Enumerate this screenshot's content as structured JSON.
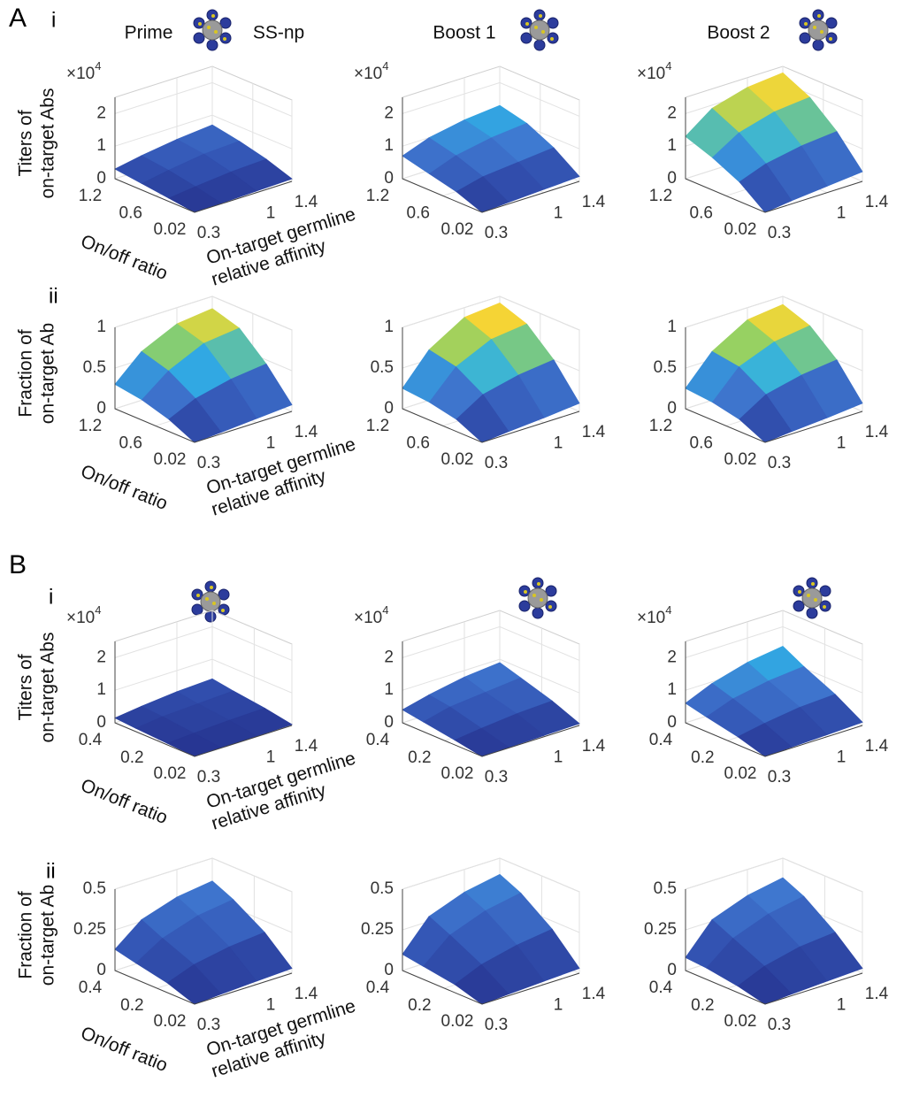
{
  "panel_labels": [
    "A",
    "B"
  ],
  "row_labels": [
    "i",
    "ii",
    "i",
    "ii"
  ],
  "icon_label": "SS-np",
  "colormap": [
    "#26338f",
    "#3456b5",
    "#3f78d0",
    "#2fb0e6",
    "#8fd066",
    "#f5d736",
    "#ef5a1c"
  ],
  "chart_data": [
    {
      "type": "surface",
      "title": "Prime",
      "zlabel": [
        "Titers of",
        "on-target Abs"
      ],
      "ylabel": "On/off ratio",
      "xlabel": [
        "On-target germline",
        "relative affinity"
      ],
      "zmultiplier": "×10",
      "zexponent": "4",
      "x": [
        0.3,
        0.6,
        1,
        1.4
      ],
      "y": [
        0.02,
        0.4,
        0.8,
        1.2
      ],
      "z": [
        [
          0,
          0.02,
          0.05,
          0.08
        ],
        [
          0.1,
          0.2,
          0.3,
          0.35
        ],
        [
          0.2,
          0.35,
          0.5,
          0.55
        ],
        [
          0.3,
          0.45,
          0.6,
          0.7
        ]
      ],
      "xlim": [
        0.3,
        1.4
      ],
      "ylim": [
        0.02,
        1.2
      ],
      "zlim": [
        0,
        2.5
      ],
      "clim": [
        0,
        2.5
      ],
      "xticks": [
        0.3,
        1,
        1.4
      ],
      "yticks": [
        0.02,
        0.6,
        1.2
      ],
      "zticks": [
        0,
        1,
        2
      ],
      "grid": true
    },
    {
      "type": "surface",
      "title": "Boost 1",
      "zmultiplier": "×10",
      "zexponent": "4",
      "x": [
        0.3,
        0.6,
        1,
        1.4
      ],
      "y": [
        0.02,
        0.4,
        0.8,
        1.2
      ],
      "z": [
        [
          0,
          0.05,
          0.1,
          0.15
        ],
        [
          0.3,
          0.5,
          0.6,
          0.7
        ],
        [
          0.5,
          0.8,
          1.0,
          1.1
        ],
        [
          0.7,
          1.0,
          1.2,
          1.3
        ]
      ],
      "xlim": [
        0.3,
        1.4
      ],
      "ylim": [
        0.02,
        1.2
      ],
      "zlim": [
        0,
        2.5
      ],
      "clim": [
        0,
        2.5
      ],
      "xticks": [
        0.3,
        1,
        1.4
      ],
      "yticks": [
        0.02,
        0.6,
        1.2
      ],
      "zticks": [
        0,
        1,
        2
      ],
      "grid": true
    },
    {
      "type": "surface",
      "title": "Boost 2",
      "zmultiplier": "×10",
      "zexponent": "4",
      "x": [
        0.3,
        0.6,
        1,
        1.4
      ],
      "y": [
        0.02,
        0.4,
        0.8,
        1.2
      ],
      "z": [
        [
          0,
          0.1,
          0.2,
          0.3
        ],
        [
          0.6,
          0.9,
          1.1,
          1.2
        ],
        [
          1.0,
          1.5,
          1.8,
          1.9
        ],
        [
          1.3,
          1.9,
          2.2,
          2.3
        ]
      ],
      "xlim": [
        0.3,
        1.4
      ],
      "ylim": [
        0.02,
        1.2
      ],
      "zlim": [
        0,
        2.5
      ],
      "clim": [
        0,
        2.5
      ],
      "xticks": [
        0.3,
        1,
        1.4
      ],
      "yticks": [
        0.02,
        0.6,
        1.2
      ],
      "zticks": [
        0,
        1,
        2
      ],
      "grid": true
    },
    {
      "type": "surface",
      "zlabel": [
        "Fraction of",
        "on-target Ab"
      ],
      "ylabel": "On/off ratio",
      "xlabel": [
        "On-target germline",
        "relative affinity"
      ],
      "x": [
        0.3,
        0.6,
        1,
        1.4
      ],
      "y": [
        0.02,
        0.4,
        0.8,
        1.2
      ],
      "z": [
        [
          0,
          0.02,
          0.05,
          0.08
        ],
        [
          0.15,
          0.3,
          0.4,
          0.45
        ],
        [
          0.25,
          0.5,
          0.7,
          0.75
        ],
        [
          0.3,
          0.6,
          0.8,
          0.85
        ]
      ],
      "xlim": [
        0.3,
        1.4
      ],
      "ylim": [
        0.02,
        1.2
      ],
      "zlim": [
        0,
        1
      ],
      "clim": [
        0,
        1
      ],
      "xticks": [
        0.3,
        1,
        1.4
      ],
      "yticks": [
        0.02,
        0.6,
        1.2
      ],
      "zticks": [
        0,
        0.5,
        1
      ],
      "grid": true
    },
    {
      "type": "surface",
      "x": [
        0.3,
        0.6,
        1,
        1.4
      ],
      "y": [
        0.02,
        0.4,
        0.8,
        1.2
      ],
      "z": [
        [
          0,
          0.03,
          0.06,
          0.1
        ],
        [
          0.15,
          0.35,
          0.45,
          0.5
        ],
        [
          0.22,
          0.55,
          0.75,
          0.8
        ],
        [
          0.25,
          0.62,
          0.88,
          0.92
        ]
      ],
      "xlim": [
        0.3,
        1.4
      ],
      "ylim": [
        0.02,
        1.2
      ],
      "zlim": [
        0,
        1
      ],
      "clim": [
        0,
        1
      ],
      "xticks": [
        0.3,
        1,
        1.4
      ],
      "yticks": [
        0.02,
        0.6,
        1.2
      ],
      "zticks": [
        0,
        0.5,
        1
      ],
      "grid": true
    },
    {
      "type": "surface",
      "x": [
        0.3,
        0.6,
        1,
        1.4
      ],
      "y": [
        0.02,
        0.4,
        0.8,
        1.2
      ],
      "z": [
        [
          0,
          0.03,
          0.06,
          0.1
        ],
        [
          0.15,
          0.35,
          0.45,
          0.5
        ],
        [
          0.22,
          0.55,
          0.72,
          0.78
        ],
        [
          0.25,
          0.6,
          0.85,
          0.9
        ]
      ],
      "xlim": [
        0.3,
        1.4
      ],
      "ylim": [
        0.02,
        1.2
      ],
      "zlim": [
        0,
        1
      ],
      "clim": [
        0,
        1
      ],
      "xticks": [
        0.3,
        1,
        1.4
      ],
      "yticks": [
        0.02,
        0.6,
        1.2
      ],
      "zticks": [
        0,
        0.5,
        1
      ],
      "grid": true
    },
    {
      "type": "surface",
      "zlabel": [
        "Titers of",
        "on-target Abs"
      ],
      "ylabel": "On/off ratio",
      "xlabel": [
        "On-target germline",
        "relative affinity"
      ],
      "zmultiplier": "×10",
      "zexponent": "4",
      "x": [
        0.3,
        0.6,
        1,
        1.4
      ],
      "y": [
        0.02,
        0.15,
        0.3,
        0.4
      ],
      "z": [
        [
          0,
          0.01,
          0.02,
          0.03
        ],
        [
          0.05,
          0.1,
          0.15,
          0.18
        ],
        [
          0.1,
          0.2,
          0.25,
          0.3
        ],
        [
          0.15,
          0.25,
          0.35,
          0.4
        ]
      ],
      "xlim": [
        0.3,
        1.4
      ],
      "ylim": [
        0.02,
        0.4
      ],
      "zlim": [
        0,
        2.5
      ],
      "clim": [
        0,
        2.5
      ],
      "xticks": [
        0.3,
        1,
        1.4
      ],
      "yticks": [
        0.02,
        0.2,
        0.4
      ],
      "zticks": [
        0,
        1,
        2
      ],
      "grid": true
    },
    {
      "type": "surface",
      "zmultiplier": "×10",
      "zexponent": "4",
      "x": [
        0.3,
        0.6,
        1,
        1.4
      ],
      "y": [
        0.02,
        0.15,
        0.3,
        0.4
      ],
      "z": [
        [
          0,
          0.02,
          0.04,
          0.06
        ],
        [
          0.15,
          0.25,
          0.35,
          0.4
        ],
        [
          0.3,
          0.5,
          0.6,
          0.7
        ],
        [
          0.4,
          0.6,
          0.8,
          0.9
        ]
      ],
      "xlim": [
        0.3,
        1.4
      ],
      "ylim": [
        0.02,
        0.4
      ],
      "zlim": [
        0,
        2.5
      ],
      "clim": [
        0,
        2.5
      ],
      "xticks": [
        0.3,
        1,
        1.4
      ],
      "yticks": [
        0.02,
        0.2,
        0.4
      ],
      "zticks": [
        0,
        1,
        2
      ],
      "grid": true
    },
    {
      "type": "surface",
      "zmultiplier": "×10",
      "zexponent": "4",
      "x": [
        0.3,
        0.6,
        1,
        1.4
      ],
      "y": [
        0.02,
        0.15,
        0.3,
        0.4
      ],
      "z": [
        [
          0,
          0.03,
          0.06,
          0.1
        ],
        [
          0.25,
          0.4,
          0.55,
          0.6
        ],
        [
          0.45,
          0.75,
          0.95,
          1.05
        ],
        [
          0.6,
          0.95,
          1.25,
          1.4
        ]
      ],
      "xlim": [
        0.3,
        1.4
      ],
      "ylim": [
        0.02,
        0.4
      ],
      "zlim": [
        0,
        2.5
      ],
      "clim": [
        0,
        2.5
      ],
      "xticks": [
        0.3,
        1,
        1.4
      ],
      "yticks": [
        0.02,
        0.2,
        0.4
      ],
      "zticks": [
        0,
        1,
        2
      ],
      "grid": true
    },
    {
      "type": "surface",
      "zlabel": [
        "Fraction of",
        "on-target Ab"
      ],
      "ylabel": "On/off ratio",
      "xlabel": [
        "On-target germline",
        "relative affinity"
      ],
      "x": [
        0.3,
        0.6,
        1,
        1.4
      ],
      "y": [
        0.02,
        0.15,
        0.3,
        0.4
      ],
      "z": [
        [
          0,
          0.01,
          0.02,
          0.03
        ],
        [
          0.06,
          0.12,
          0.16,
          0.18
        ],
        [
          0.1,
          0.2,
          0.27,
          0.3
        ],
        [
          0.13,
          0.26,
          0.33,
          0.36
        ]
      ],
      "xlim": [
        0.3,
        1.4
      ],
      "ylim": [
        0.02,
        0.4
      ],
      "zlim": [
        0,
        0.5
      ],
      "clim": [
        0,
        1
      ],
      "xticks": [
        0.3,
        1,
        1.4
      ],
      "yticks": [
        0.02,
        0.2,
        0.4
      ],
      "zticks": [
        0,
        0.25,
        0.5
      ],
      "grid": true
    },
    {
      "type": "surface",
      "x": [
        0.3,
        0.6,
        1,
        1.4
      ],
      "y": [
        0.02,
        0.15,
        0.3,
        0.4
      ],
      "z": [
        [
          0,
          0.01,
          0.02,
          0.03
        ],
        [
          0.05,
          0.12,
          0.17,
          0.2
        ],
        [
          0.08,
          0.22,
          0.3,
          0.34
        ],
        [
          0.1,
          0.28,
          0.36,
          0.4
        ]
      ],
      "xlim": [
        0.3,
        1.4
      ],
      "ylim": [
        0.02,
        0.4
      ],
      "zlim": [
        0,
        0.5
      ],
      "clim": [
        0,
        1
      ],
      "xticks": [
        0.3,
        1,
        1.4
      ],
      "yticks": [
        0.02,
        0.2,
        0.4
      ],
      "zticks": [
        0,
        0.25,
        0.5
      ],
      "grid": true
    },
    {
      "type": "surface",
      "x": [
        0.3,
        0.6,
        1,
        1.4
      ],
      "y": [
        0.02,
        0.15,
        0.3,
        0.4
      ],
      "z": [
        [
          0,
          0.01,
          0.02,
          0.03
        ],
        [
          0.04,
          0.11,
          0.16,
          0.18
        ],
        [
          0.07,
          0.2,
          0.28,
          0.32
        ],
        [
          0.08,
          0.26,
          0.34,
          0.38
        ]
      ],
      "xlim": [
        0.3,
        1.4
      ],
      "ylim": [
        0.02,
        0.4
      ],
      "zlim": [
        0,
        0.5
      ],
      "clim": [
        0,
        1
      ],
      "xticks": [
        0.3,
        1,
        1.4
      ],
      "yticks": [
        0.02,
        0.2,
        0.4
      ],
      "zticks": [
        0,
        0.25,
        0.5
      ],
      "grid": true
    }
  ]
}
